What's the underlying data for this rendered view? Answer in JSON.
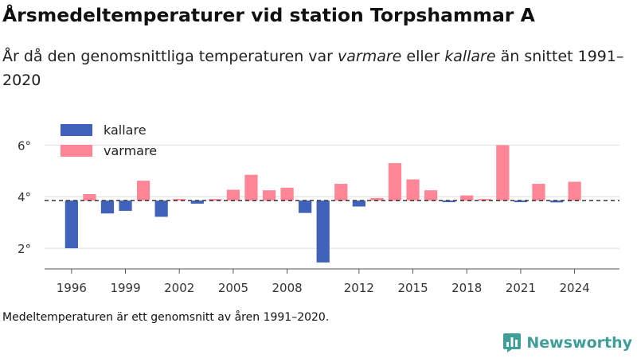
{
  "header": {
    "title": "Årsmedeltemperaturer vid station Torpshammar A",
    "subtitle_part1": "År då den genomsnittliga temperaturen var ",
    "subtitle_warm": "varmare",
    "subtitle_part2": " eller ",
    "subtitle_cold": "kallare",
    "subtitle_part3": " än snittet 1991–2020"
  },
  "footer": {
    "note": "Medeltemperaturen är ett genomsnitt av åren 1991–2020.",
    "brand": "Newsworthy",
    "brand_icon": "newsworthy-logo-icon"
  },
  "colors": {
    "kallare": "#4062bb",
    "varmare": "#ff8696",
    "baseline": "#333333",
    "grid": "#dddddd",
    "brand": "#3f9e97"
  },
  "chart_data": {
    "type": "bar",
    "baseline": 3.85,
    "ylim": [
      1.2,
      7.0
    ],
    "yticks": [
      2,
      4,
      6
    ],
    "ytick_labels": [
      "2°",
      "4°",
      "6°"
    ],
    "xlim": [
      1994.5,
      2026.5
    ],
    "xticks": [
      1996,
      1999,
      2002,
      2005,
      2008,
      2012,
      2015,
      2018,
      2021,
      2024
    ],
    "xtick_labels": [
      "1996",
      "1999",
      "2002",
      "2005",
      "2008",
      "2012",
      "2015",
      "2018",
      "2021",
      "2024"
    ],
    "legend": {
      "position": "top-left",
      "items": [
        {
          "key": "kallare",
          "label": "kallare"
        },
        {
          "key": "varmare",
          "label": "varmare"
        }
      ]
    },
    "years": [
      1996,
      1997,
      1998,
      1999,
      2000,
      2001,
      2002,
      2003,
      2004,
      2005,
      2006,
      2007,
      2008,
      2009,
      2010,
      2011,
      2012,
      2013,
      2014,
      2015,
      2016,
      2017,
      2018,
      2019,
      2020,
      2021,
      2022,
      2023,
      2024
    ],
    "values": [
      2.0,
      4.1,
      3.35,
      3.45,
      4.62,
      3.22,
      3.85,
      3.73,
      3.9,
      4.27,
      4.85,
      4.25,
      4.35,
      3.37,
      1.45,
      4.5,
      3.62,
      3.95,
      5.3,
      4.67,
      4.25,
      3.8,
      4.05,
      3.85,
      6.0,
      3.82,
      4.5,
      3.78,
      4.58
    ]
  }
}
